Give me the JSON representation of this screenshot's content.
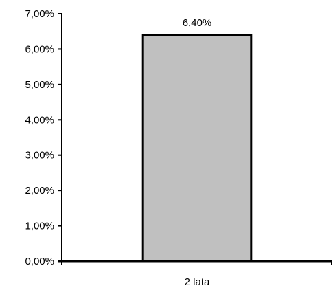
{
  "chart_data": {
    "type": "bar",
    "title": "",
    "xlabel": "",
    "ylabel": "",
    "categories": [
      "2 lata"
    ],
    "values": [
      6.4
    ],
    "data_labels": [
      "6,40%"
    ],
    "ylim": [
      0,
      7
    ],
    "y_ticks": [
      0,
      1,
      2,
      3,
      4,
      5,
      6,
      7
    ],
    "y_tick_labels": [
      "0,00%",
      "1,00%",
      "2,00%",
      "3,00%",
      "4,00%",
      "5,00%",
      "6,00%",
      "7,00%"
    ],
    "grid": false,
    "legend": "none",
    "colors": {
      "bar_fill": "#c0c0c0",
      "bar_stroke": "#000000",
      "axis": "#000000"
    }
  }
}
